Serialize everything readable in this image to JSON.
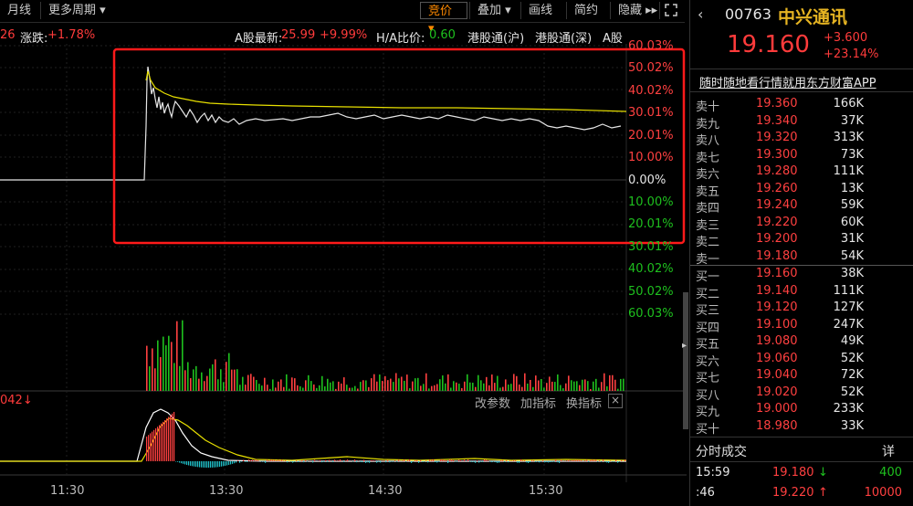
{
  "toolbar": {
    "left_items": [
      "月线",
      "更多周期 ▾"
    ],
    "right_items": [
      "竞价 ▾",
      "叠加 ▾",
      "画线",
      "简约",
      "隐藏 ▸▸"
    ]
  },
  "infoline": {
    "change_prefix": "26",
    "change_label": "涨跌:",
    "change_value": "+1.78%",
    "a_latest_label": "A股最新:",
    "a_latest_price": "25.99",
    "a_latest_pct": "+9.99%",
    "ha_label": "H/A比价:",
    "ha_value": "0.60",
    "link1": "港股通(沪)",
    "link2": "港股通(深)",
    "link3": "A股"
  },
  "y_axis_labels": [
    {
      "text": "60.03%",
      "color": "#ff4040"
    },
    {
      "text": "50.02%",
      "color": "#ff4040"
    },
    {
      "text": "40.02%",
      "color": "#ff4040"
    },
    {
      "text": "30.01%",
      "color": "#ff4040"
    },
    {
      "text": "20.01%",
      "color": "#ff4040"
    },
    {
      "text": "10.00%",
      "color": "#ff4040"
    },
    {
      "text": "0.00%",
      "color": "#e6e6e6"
    },
    {
      "text": "10.00%",
      "color": "#1ec01e"
    },
    {
      "text": "20.01%",
      "color": "#1ec01e"
    },
    {
      "text": "30.01%",
      "color": "#1ec01e"
    },
    {
      "text": "40.02%",
      "color": "#1ec01e"
    },
    {
      "text": "50.02%",
      "color": "#1ec01e"
    },
    {
      "text": "60.03%",
      "color": "#1ec01e"
    }
  ],
  "indicator": {
    "left_text": "042↓",
    "buttons": [
      "改参数",
      "加指标",
      "换指标"
    ],
    "close": "×"
  },
  "time_axis": [
    "11:30",
    "13:30",
    "14:30",
    "15:30"
  ],
  "stock": {
    "code": "00763",
    "name": "中兴通讯",
    "price": "19.160",
    "change": "+3.600",
    "change_pct": "+23.14%",
    "ad": "随时随地看行情就用东方财富APP"
  },
  "sell_orders": [
    {
      "label": "卖十",
      "price": "19.360",
      "vol": "166K"
    },
    {
      "label": "卖九",
      "price": "19.340",
      "vol": "37K"
    },
    {
      "label": "卖八",
      "price": "19.320",
      "vol": "313K"
    },
    {
      "label": "卖七",
      "price": "19.300",
      "vol": "73K"
    },
    {
      "label": "卖六",
      "price": "19.280",
      "vol": "111K"
    },
    {
      "label": "卖五",
      "price": "19.260",
      "vol": "13K"
    },
    {
      "label": "卖四",
      "price": "19.240",
      "vol": "59K"
    },
    {
      "label": "卖三",
      "price": "19.220",
      "vol": "60K"
    },
    {
      "label": "卖二",
      "price": "19.200",
      "vol": "31K"
    },
    {
      "label": "卖一",
      "price": "19.180",
      "vol": "54K"
    }
  ],
  "buy_orders": [
    {
      "label": "买一",
      "price": "19.160",
      "vol": "38K"
    },
    {
      "label": "买二",
      "price": "19.140",
      "vol": "111K"
    },
    {
      "label": "买三",
      "price": "19.120",
      "vol": "127K"
    },
    {
      "label": "买四",
      "price": "19.100",
      "vol": "247K"
    },
    {
      "label": "买五",
      "price": "19.080",
      "vol": "49K"
    },
    {
      "label": "买六",
      "price": "19.060",
      "vol": "52K"
    },
    {
      "label": "买七",
      "price": "19.040",
      "vol": "72K"
    },
    {
      "label": "买八",
      "price": "19.020",
      "vol": "52K"
    },
    {
      "label": "买九",
      "price": "19.000",
      "vol": "233K"
    },
    {
      "label": "买十",
      "price": "18.980",
      "vol": "33K"
    }
  ],
  "trades_title": "分时成交",
  "trades_detail": "详",
  "trades": [
    {
      "time": "15:59",
      "price": "19.180",
      "dir": "↓",
      "vol": "400",
      "color": "#1ec01e"
    },
    {
      "time": ":46",
      "price": "19.220",
      "dir": "↑",
      "vol": "10000",
      "color": "#ff4040"
    }
  ],
  "colors": {
    "up": "#ff4040",
    "down": "#1ec01e",
    "avg_line": "#e8e000",
    "price_line": "#e6e6e6",
    "highlight_box": "#ff1a1a",
    "selected_tab": "#ff8a00"
  }
}
